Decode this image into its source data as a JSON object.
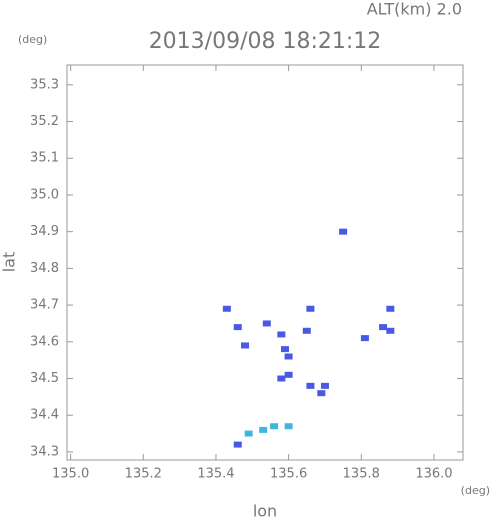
{
  "chart_data": {
    "type": "scatter",
    "title": "2013/09/08 18:21:12",
    "subtitle": "ALT(km) 2.0",
    "y_unit": "(deg)",
    "x_unit": "(deg)",
    "x_label": "lon",
    "y_label": "lat",
    "xlim": [
      134.99,
      136.08
    ],
    "ylim": [
      34.278,
      35.354
    ],
    "xticks": [
      {
        "value": 135,
        "label": "135.0"
      },
      135.2,
      135.4,
      135.6,
      135.8,
      {
        "value": 136,
        "label": "136.0"
      }
    ],
    "yticks": [
      34.3,
      34.4,
      34.5,
      34.6,
      34.7,
      34.8,
      34.9,
      {
        "value": 35,
        "label": "35.0"
      },
      35.1,
      35.2,
      35.3
    ],
    "series": [
      {
        "color": "#4a58e6",
        "x": [
          135.43,
          135.46,
          135.48,
          135.54,
          135.58,
          135.59,
          135.6,
          135.58,
          135.6,
          135.65,
          135.66,
          135.66,
          135.7,
          135.69,
          135.75,
          135.81,
          135.86,
          135.88,
          135.88,
          135.46
        ],
        "values": [
          34.69,
          34.64,
          34.59,
          34.65,
          34.62,
          34.58,
          34.56,
          34.5,
          34.51,
          34.63,
          34.69,
          34.48,
          34.48,
          34.46,
          34.9,
          34.61,
          34.64,
          34.63,
          34.69,
          34.32
        ]
      },
      {
        "color": "#3fb6e0",
        "x": [
          135.49,
          135.53,
          135.56,
          135.6
        ],
        "values": [
          34.35,
          34.36,
          34.37,
          34.37
        ]
      }
    ]
  }
}
